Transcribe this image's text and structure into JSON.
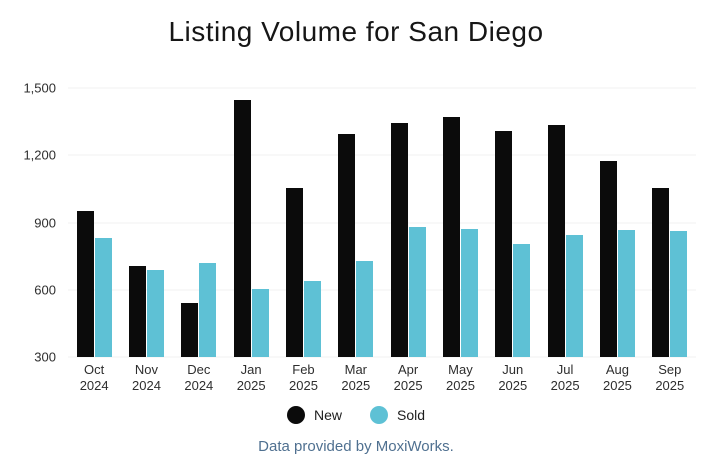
{
  "title": "Listing Volume for San Diego",
  "footer": {
    "text": "Data provided by MoxiWorks."
  },
  "colors": {
    "title_text": "#161616",
    "axis_text": "#2e2e2e",
    "gridline": "#f0f0f0",
    "new_series": "#0b0b0b",
    "sold_series": "#5ec1d5",
    "footer_text": "#4f7090"
  },
  "chart_data": {
    "type": "bar",
    "title": "Listing Volume for San Diego",
    "categories": [
      "Oct 2024",
      "Nov 2024",
      "Dec 2024",
      "Jan 2025",
      "Feb 2025",
      "Mar 2025",
      "Apr 2025",
      "May 2025",
      "Jun 2025",
      "Jul 2025",
      "Aug 2025",
      "Sep 2025"
    ],
    "series": [
      {
        "name": "New",
        "color": "#0b0b0b",
        "values": [
          950,
          705,
          540,
          1445,
          1055,
          1295,
          1345,
          1370,
          1310,
          1335,
          1175,
          1055
        ]
      },
      {
        "name": "Sold",
        "color": "#5ec1d5",
        "values": [
          830,
          690,
          720,
          605,
          640,
          730,
          880,
          870,
          805,
          845,
          865,
          860
        ]
      }
    ],
    "ylim": [
      300,
      1500
    ],
    "yticks": [
      300,
      600,
      900,
      1200,
      1500
    ],
    "ytick_labels": [
      "300",
      "600",
      "900",
      "1,200",
      "1,500"
    ],
    "grid": true,
    "legend_position": "bottom"
  }
}
